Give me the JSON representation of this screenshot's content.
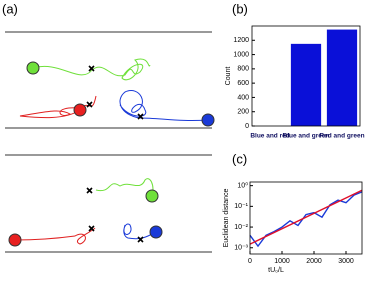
{
  "illustration": {
    "label": "(a)"
  },
  "chart_data": [
    {
      "type": "bar",
      "label": "(b)",
      "ylabel": "Count",
      "categories": [
        "Blue and red",
        "Blue and green",
        "Red and green"
      ],
      "values": [
        0,
        1150,
        1350
      ],
      "color": "#0a10d8",
      "ylim": [
        0,
        1400
      ],
      "yticks": [
        0,
        200,
        400,
        600,
        800,
        1000,
        1200
      ]
    },
    {
      "type": "line",
      "label": "(c)",
      "ylabel": "Euclidean distance",
      "xlabel": "tU₀/L",
      "log_y": true,
      "xlim": [
        0,
        3500
      ],
      "xticks": [
        0,
        1000,
        2000,
        3000
      ],
      "ylim": [
        0.0005,
        1.5
      ],
      "yticks": [
        {
          "value": 0.001,
          "label": "10⁻³"
        },
        {
          "value": 0.01,
          "label": "10⁻²"
        },
        {
          "value": 0.1,
          "label": "10⁻¹"
        },
        {
          "value": 1,
          "label": "10⁰"
        }
      ],
      "series": [
        {
          "color": "#1a3ad8",
          "x": [
            0,
            250,
            500,
            750,
            1000,
            1250,
            1500,
            1750,
            2000,
            2250,
            2500,
            2750,
            3000,
            3250,
            3500
          ],
          "values": [
            0.004,
            0.0012,
            0.004,
            0.006,
            0.01,
            0.02,
            0.012,
            0.04,
            0.05,
            0.03,
            0.12,
            0.2,
            0.15,
            0.35,
            0.5
          ]
        },
        {
          "color": "#e0102a",
          "x": [
            0,
            3500
          ],
          "values": [
            0.0015,
            0.6
          ]
        }
      ]
    }
  ]
}
